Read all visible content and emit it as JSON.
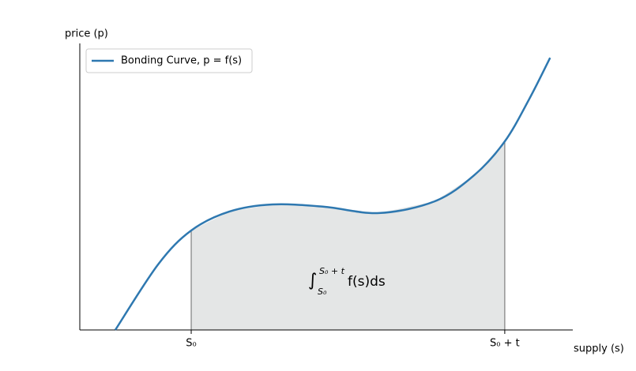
{
  "chart_data": {
    "type": "line",
    "x_label": "supply (s)",
    "y_label": "price (p)",
    "x": [
      7.2,
      15.9,
      22.6,
      30.3,
      39.1,
      49.5,
      60.7,
      72,
      80,
      86.2,
      91.2,
      95.4
    ],
    "series": [
      {
        "name": "Bonding Curve, p = f(s)",
        "color": "#2e78b0",
        "values": [
          0,
          22.9,
          34.7,
          41.3,
          43.8,
          43,
          40.8,
          44.9,
          54,
          65.8,
          80.7,
          95
        ]
      }
    ],
    "xlim": [
      0,
      100
    ],
    "ylim": [
      0,
      100
    ],
    "xticks": [
      {
        "value": 22.6,
        "label": "S₀"
      },
      {
        "value": 86.2,
        "label": "S₀ + t"
      }
    ],
    "shade_color": "#e4e6e6",
    "legend": "upper left",
    "annotation": {
      "integral": "∫",
      "upper": "S₀ + t",
      "lower": "S₀",
      "integrand": "f(s)ds"
    }
  }
}
